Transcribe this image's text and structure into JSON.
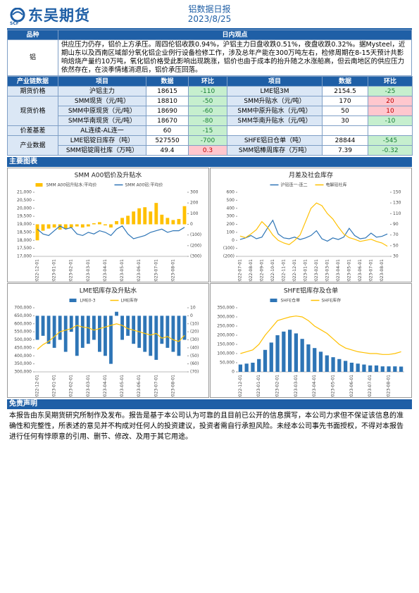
{
  "header": {
    "logo": "东吴期货",
    "logo_sub": "SCF",
    "title": "铝数据日报",
    "date": "2023/8/25"
  },
  "view_table": {
    "headers": [
      "品种",
      "日内观点"
    ],
    "rows": [
      [
        "铝",
        "供应压力仍存，铝价上方承压。周四伦铝收跌0.94%，沪铝主力日盘收跌0.51%，夜盘收跌0.32%。据Mysteel，近期山东以及西南区域部分氧化铝企业例行设备检修工作，涉及总年产能在300万吨左右，检修周期在8-15天预计共影响焙烧产量约10万吨，氧化铝价格受此影响出现跳涨，铝价也由于成本的抬升随之水涨船高，但云南地区的供应压力依然存在，在淡季情绪消退后，铝价承压回落。"
      ]
    ]
  },
  "data_table": {
    "headers": [
      "产业链数据",
      "项目",
      "数据",
      "环比",
      "项目",
      "数据",
      "环比"
    ],
    "groups": [
      {
        "label": "期货价格",
        "rows": [
          [
            "沪铝主力",
            18615,
            -110,
            "LME铝3M",
            2154.5,
            -25
          ]
        ]
      },
      {
        "label": "现货价格",
        "rows": [
          [
            "SMM现货（元/吨）",
            18810,
            -50,
            "SMM升贴水（元/吨）",
            170,
            20
          ],
          [
            "SMM中原现货（元/吨）",
            18690,
            -60,
            "SMM中原升贴水（元/吨）",
            50,
            10
          ],
          [
            "SMM华南现货（元/吨）",
            18670,
            -80,
            "SMM华南升贴水（元/吨）",
            30,
            -10
          ]
        ]
      },
      {
        "label": "价差基差",
        "rows": [
          [
            "AL连续-AL连一",
            60,
            -15
          ]
        ]
      },
      {
        "label": "产业数据",
        "rows": [
          [
            "LME铝锭日库存（吨）",
            527550,
            -700,
            "SHFE铝日仓单（吨）",
            28844,
            -545
          ],
          [
            "SMM铝锭周社库（万吨）",
            49.4,
            0.3,
            "SMM铝棒周库存（万吨）",
            7.39,
            -0.32
          ]
        ]
      }
    ]
  },
  "section_title": "主要图表",
  "chart_data": [
    {
      "type": "combo",
      "title": "SMM A00铝价及升贴水",
      "categories": [
        "2022-12-01",
        null,
        null,
        "2023-01-01",
        null,
        null,
        "2023-02-01",
        null,
        null,
        "2023-03-01",
        null,
        null,
        "2023-04-01",
        null,
        null,
        "2023-05-01",
        null,
        null,
        "2023-06-01",
        null,
        null,
        "2023-07-01",
        null,
        null,
        "2023-08-01",
        null,
        null
      ],
      "series": [
        {
          "name": "SMM A00铝升贴水:平均价",
          "type": "bar",
          "axis": "y2",
          "color": "#ffc000",
          "values": [
            -150,
            -60,
            -40,
            -30,
            -50,
            -40,
            -30,
            -20,
            -30,
            -20,
            10,
            20,
            -10,
            -30,
            30,
            60,
            80,
            120,
            150,
            160,
            120,
            200,
            90,
            60,
            40,
            50,
            170
          ]
        },
        {
          "name": "SMM A00铝:平均价",
          "type": "line",
          "color": "#2e75b6",
          "values": [
            18700,
            18400,
            18300,
            18600,
            18900,
            18700,
            18800,
            18400,
            18300,
            18500,
            18400,
            18600,
            18500,
            18300,
            18700,
            18900,
            18400,
            18100,
            18200,
            18300,
            18500,
            18600,
            18700,
            18500,
            18600,
            18600,
            18810
          ]
        }
      ],
      "ylim": [
        17000,
        21000
      ],
      "yticks": [
        {
          "value": 17000,
          "label": "17,000"
        },
        {
          "value": 17500,
          "label": "17,500"
        },
        {
          "value": 18000,
          "label": "18,000"
        },
        {
          "value": 18500,
          "label": "18,500"
        },
        {
          "value": 19000,
          "label": "19,000"
        },
        {
          "value": 19500,
          "label": "19,500"
        },
        {
          "value": 20000,
          "label": "20,000"
        },
        {
          "value": 20500,
          "label": "20,500"
        },
        {
          "value": 21000,
          "label": "21,000"
        }
      ],
      "y2lim": [
        -300,
        300
      ],
      "y2ticks": [
        {
          "value": -300,
          "label": "(300)"
        },
        {
          "value": -200,
          "label": "(200)"
        },
        {
          "value": -100,
          "label": "(100)"
        },
        0,
        100,
        200,
        300
      ]
    },
    {
      "type": "combo",
      "title": "月差及社会库存",
      "categories": [
        "2022-07-01",
        null,
        "2022-08-01",
        null,
        "2022-09-01",
        null,
        "2022-10-01",
        null,
        "2022-11-01",
        null,
        "2022-12-01",
        null,
        "2023-01-01",
        null,
        "2023-02-01",
        null,
        "2023-03-01",
        null,
        "2023-04-01",
        null,
        "2023-05-01",
        null,
        "2023-06-01",
        null,
        "2023-07-01",
        null,
        "2023-08-01",
        null
      ],
      "series": [
        {
          "name": "沪铝连一-连二",
          "type": "line",
          "color": "#2e75b6",
          "values": [
            10,
            30,
            60,
            20,
            40,
            150,
            250,
            80,
            30,
            20,
            40,
            10,
            30,
            60,
            120,
            20,
            -10,
            30,
            10,
            40,
            150,
            60,
            20,
            30,
            90,
            40,
            50,
            80
          ]
        },
        {
          "name": "电解铝社库",
          "type": "line",
          "axis": "y2",
          "color": "#ffc000",
          "values": [
            68,
            65,
            72,
            80,
            95,
            85,
            70,
            60,
            55,
            52,
            60,
            70,
            95,
            120,
            130,
            125,
            110,
            100,
            85,
            72,
            65,
            62,
            58,
            60,
            62,
            58,
            55,
            49
          ]
        }
      ],
      "ylim": [
        -200,
        600
      ],
      "yticks": [
        {
          "value": -200,
          "label": "(200)"
        },
        {
          "value": -100,
          "label": "(100)"
        },
        0,
        100,
        200,
        300,
        400,
        500,
        600
      ],
      "y2lim": [
        30,
        150
      ],
      "y2ticks": [
        30,
        50,
        70,
        90,
        110,
        130,
        150
      ]
    },
    {
      "type": "combo",
      "title": "LME铝库存及升贴水",
      "categories": [
        "2022-12-01",
        null,
        null,
        "2023-01-01",
        null,
        null,
        "2023-02-01",
        null,
        null,
        "2023-03-01",
        null,
        null,
        "2023-04-01",
        null,
        null,
        "2023-05-01",
        null,
        null,
        "2023-06-01",
        null,
        null,
        "2023-07-01",
        null,
        null,
        "2023-08-01",
        null,
        null
      ],
      "series": [
        {
          "name": "LME0-3",
          "type": "bar",
          "axis": "y2",
          "color": "#2e75b6",
          "values": [
            -30,
            -25,
            -35,
            -40,
            -30,
            -45,
            -20,
            -50,
            -40,
            -35,
            -30,
            -45,
            -50,
            -60,
            5,
            -30,
            -25,
            -35,
            -40,
            -45,
            -50,
            -55,
            -35,
            -40,
            -45,
            -50,
            -30
          ]
        },
        {
          "name": "LME库存",
          "type": "line",
          "color": "#ffc000",
          "values": [
            440000,
            470000,
            490000,
            520000,
            550000,
            560000,
            570000,
            590000,
            580000,
            575000,
            560000,
            570000,
            580000,
            590000,
            600000,
            590000,
            570000,
            560000,
            550000,
            540000,
            530000,
            540000,
            510000,
            520000,
            500000,
            490000,
            527550
          ]
        }
      ],
      "ylim": [
        300000,
        700000
      ],
      "yticks": [
        {
          "value": 300000,
          "label": "300,000"
        },
        {
          "value": 350000,
          "label": "350,000"
        },
        {
          "value": 400000,
          "label": "400,000"
        },
        {
          "value": 450000,
          "label": "450,000"
        },
        {
          "value": 500000,
          "label": "500,000"
        },
        {
          "value": 550000,
          "label": "550,000"
        },
        {
          "value": 600000,
          "label": "600,000"
        },
        {
          "value": 650000,
          "label": "650,000"
        },
        {
          "value": 700000,
          "label": "700,000"
        }
      ],
      "y2lim": [
        -70,
        10
      ],
      "y2ticks": [
        {
          "value": -70,
          "label": "(70)"
        },
        {
          "value": -60,
          "label": "(60)"
        },
        {
          "value": -50,
          "label": "(50)"
        },
        {
          "value": -40,
          "label": "(40)"
        },
        {
          "value": -30,
          "label": "(30)"
        },
        {
          "value": -20,
          "label": "(20)"
        },
        {
          "value": -10,
          "label": "(10)"
        },
        0,
        10
      ]
    },
    {
      "type": "combo",
      "title": "SHFE铝库存及仓单",
      "categories": [
        "2022-12-01",
        null,
        null,
        "2023-01-01",
        null,
        null,
        "2023-02-01",
        null,
        null,
        "2023-03-01",
        null,
        null,
        "2023-04-01",
        null,
        null,
        "2023-05-01",
        null,
        null,
        "2023-06-01",
        null,
        null,
        "2023-07-01",
        null,
        null,
        "2023-08-01",
        null,
        null
      ],
      "series": [
        {
          "name": "SHFE仓单",
          "type": "bar",
          "color": "#2e75b6",
          "values": [
            40000,
            45000,
            50000,
            70000,
            120000,
            160000,
            200000,
            220000,
            230000,
            210000,
            180000,
            150000,
            130000,
            110000,
            90000,
            80000,
            70000,
            60000,
            50000,
            45000,
            40000,
            35000,
            35000,
            30000,
            30000,
            30000,
            28844
          ]
        },
        {
          "name": "SHFE库存",
          "type": "line",
          "color": "#ffc000",
          "values": [
            100000,
            110000,
            120000,
            150000,
            200000,
            240000,
            280000,
            290000,
            300000,
            305000,
            300000,
            280000,
            250000,
            230000,
            210000,
            180000,
            150000,
            130000,
            120000,
            110000,
            105000,
            100000,
            100000,
            95000,
            95000,
            100000,
            110000
          ]
        }
      ],
      "ylim": [
        0,
        350000
      ],
      "yticks": [
        0,
        {
          "value": 50000,
          "label": "50,000"
        },
        {
          "value": 100000,
          "label": "100,000"
        },
        {
          "value": 150000,
          "label": "150,000"
        },
        {
          "value": 200000,
          "label": "200,000"
        },
        {
          "value": 250000,
          "label": "250,000"
        },
        {
          "value": 300000,
          "label": "300,000"
        },
        {
          "value": 350000,
          "label": "350,000"
        }
      ]
    }
  ],
  "disclaimer": {
    "title": "免责声明",
    "text": "本报告由东吴期货研究所制作及发布。报告是基于本公司认为可靠的且目前已公开的信息撰写，本公司力求但不保证该信息的准确性和完整性，所表述的意见并不构成对任何人的投资建议，投资者需自行承担风险。未经本公司事先书面授权，不得对本报告进行任何有悖原意的引用、删节、修改、及用于其它用途。"
  }
}
